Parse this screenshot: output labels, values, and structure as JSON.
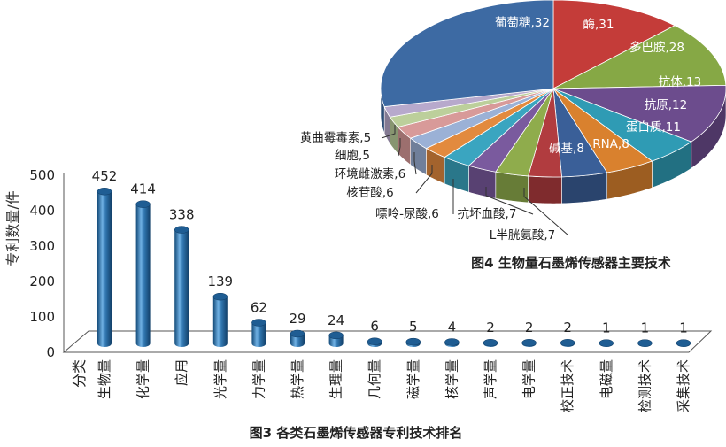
{
  "chart_data": [
    {
      "type": "bar",
      "title": "图3 各类石墨烯传感器专利技术排名",
      "ylabel": "专利数量/件",
      "xlabel": "",
      "category_header": "分类",
      "ylim": [
        0,
        500
      ],
      "yticks": [
        0,
        100,
        200,
        300,
        400,
        500
      ],
      "grid": false,
      "categories": [
        "生物量",
        "化学量",
        "应用",
        "光学量",
        "力学量",
        "热学量",
        "生理量",
        "几何量",
        "磁学量",
        "核学量",
        "声学量",
        "电学量",
        "校正技术",
        "电磁量",
        "检测技术",
        "采集技术"
      ],
      "values": [
        452,
        414,
        338,
        139,
        62,
        29,
        24,
        6,
        5,
        4,
        2,
        2,
        2,
        1,
        1,
        1
      ],
      "colors": {
        "bar": "#2f74ad",
        "bar_dark": "#134a78",
        "bar_light": "#6fb0e3",
        "floor": "#ffffff",
        "axis": "#444444"
      }
    },
    {
      "type": "pie",
      "title": "图4 生物量石墨烯传感器主要技术",
      "slices": [
        {
          "label": "葡萄糖",
          "value": 32,
          "color": "#c43c39"
        },
        {
          "label": "酶",
          "value": 31,
          "color": "#86a845"
        },
        {
          "label": "多巴胺",
          "value": 28,
          "color": "#6c4c8d"
        },
        {
          "label": "抗体",
          "value": 13,
          "color": "#2f9bb4"
        },
        {
          "label": "抗原",
          "value": 12,
          "color": "#d9812e"
        },
        {
          "label": "蛋白质",
          "value": 11,
          "color": "#3a5f98"
        },
        {
          "label": "RNA",
          "value": 8,
          "color": "#b13c3f"
        },
        {
          "label": "碱基",
          "value": 8,
          "color": "#8fac4c"
        },
        {
          "label": "L半胱氨酸",
          "value": 7,
          "color": "#7a5a9e"
        },
        {
          "label": "抗坏血酸",
          "value": 7,
          "color": "#3aa5c0"
        },
        {
          "label": "嘌呤-尿酸",
          "value": 6,
          "color": "#e28a3e"
        },
        {
          "label": "核苷酸",
          "value": 6,
          "color": "#9bb1d6"
        },
        {
          "label": "环境雌激素",
          "value": 6,
          "color": "#d89a99"
        },
        {
          "label": "细胞",
          "value": 5,
          "color": "#bccf9b"
        },
        {
          "label": "黄曲霉毒素",
          "value": 5,
          "color": "#b7a9cc"
        },
        {
          "label": "",
          "value": 73,
          "color": "#3d6aa3"
        }
      ]
    }
  ]
}
